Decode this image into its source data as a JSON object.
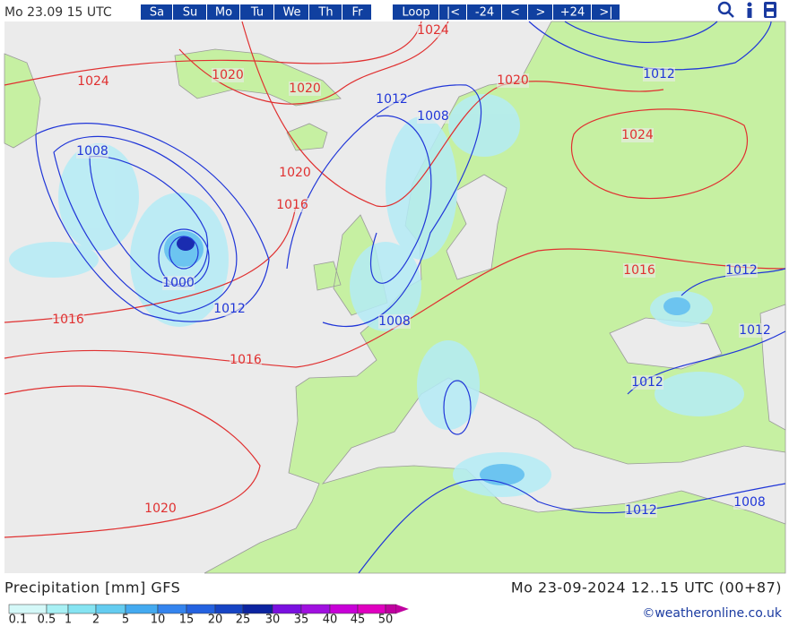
{
  "header": {
    "timestamp": "Mo 23.09 15 UTC",
    "days": [
      "Sa",
      "Su",
      "Mo",
      "Tu",
      "We",
      "Th",
      "Fr"
    ],
    "controls": [
      "Loop",
      "|<",
      "-24",
      "<",
      ">",
      "+24",
      ">|"
    ]
  },
  "map": {
    "red_isobar_labels": [
      "1024",
      "1024",
      "1020",
      "1020",
      "1020",
      "1024",
      "1020",
      "1016",
      "1016",
      "1016",
      "1016",
      "1020"
    ],
    "blue_isobar_labels": [
      "1012",
      "1008",
      "1012",
      "1008",
      "1000",
      "1012",
      "1008",
      "1012",
      "1012",
      "1012",
      "1012",
      "1008"
    ]
  },
  "footer": {
    "variable": "Precipitation [mm] GFS",
    "valid_time": "Mo 23-09-2024 12..15 UTC (00+87)",
    "scale_labels": [
      "0.1",
      "0.5",
      "1",
      "2",
      "5",
      "10",
      "15",
      "20",
      "25",
      "30",
      "35",
      "40",
      "45",
      "50"
    ],
    "credit": "©weatheronline.co.uk"
  }
}
